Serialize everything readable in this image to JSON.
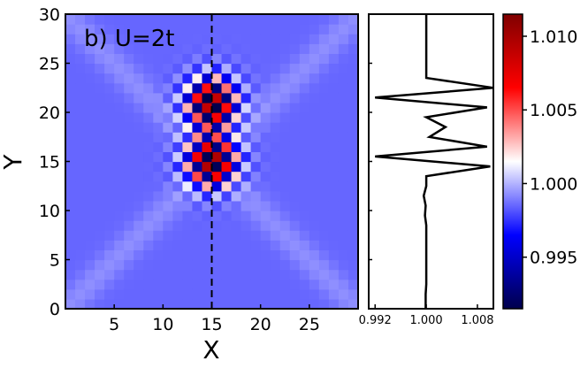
{
  "chart_data": [
    {
      "type": "heatmap",
      "annotation": "b) U=2t",
      "xlabel": "X",
      "ylabel": "Y",
      "xlim": [
        0,
        30
      ],
      "ylim": [
        0,
        30
      ],
      "xticks": [
        5,
        10,
        15,
        20,
        25
      ],
      "yticks": [
        0,
        5,
        10,
        15,
        20,
        25,
        30
      ],
      "cut_line_x": 15,
      "grid_size": 30,
      "background_value": 0.9985,
      "diagonal_value": 0.9993,
      "clusters": [
        {
          "center": [
            15,
            15
          ],
          "peak_high": 1.011,
          "peak_low": 0.992
        },
        {
          "center": [
            15,
            21
          ],
          "peak_high": 1.011,
          "peak_low": 0.992
        }
      ]
    },
    {
      "type": "line",
      "orientation": "vertical",
      "xlim": [
        0.991,
        1.0105
      ],
      "xticks": [
        0.992,
        1.0,
        1.008
      ],
      "xtick_labels": [
        "0.992",
        "1.000",
        "1.008"
      ],
      "ylim": [
        0,
        30
      ],
      "x": [
        0.9999,
        0.9999,
        1.0,
        1.0,
        1.0,
        1.0,
        1.0,
        1.0,
        1.0,
        0.9998,
        0.9999,
        0.9996,
        1.0,
        1.0,
        1.01,
        0.992,
        1.0095,
        1.0005,
        1.003,
        1.0,
        1.0095,
        0.992,
        1.0105,
        1.0,
        1.0,
        1.0,
        1.0,
        1.0,
        1.0,
        1.0
      ],
      "y": [
        0,
        1,
        2,
        3,
        4,
        5,
        6,
        7,
        8,
        9,
        10,
        11,
        12,
        13,
        14,
        15,
        16,
        17,
        18,
        19,
        20,
        21,
        22,
        23,
        24,
        25,
        26,
        27,
        28,
        29
      ],
      "color": "#000000"
    },
    {
      "type": "colorbar",
      "range": [
        0.9915,
        1.0115
      ],
      "ticks": [
        0.995,
        1.0,
        1.005,
        1.01
      ],
      "tick_labels": [
        "0.995",
        "1.000",
        "1.005",
        "1.010"
      ],
      "colormap": "seismic",
      "colors": [
        "#00004c",
        "#0000ff",
        "#ffffff",
        "#ff0000",
        "#800000"
      ]
    }
  ]
}
